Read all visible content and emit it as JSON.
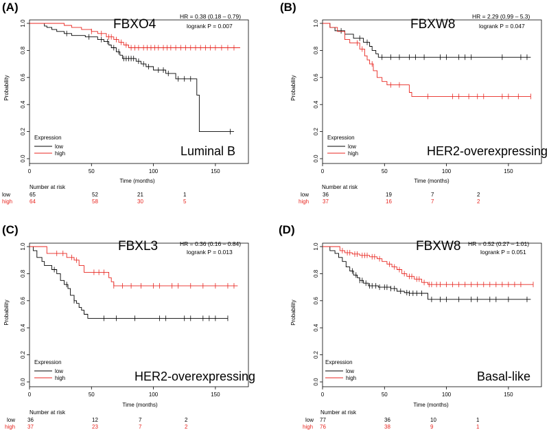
{
  "colors": {
    "low": "#000000",
    "high": "#e8251f",
    "axis": "#000000"
  },
  "chart_data": [
    {
      "type": "line",
      "panel": "(A)",
      "gene": "FBXO4",
      "subtype": "Luminal B",
      "hr_text": "HR = 0.38 (0.18 – 0.79)",
      "p_text": "logrank P = 0.007",
      "xlabel": "Time (months)",
      "ylabel": "Probability",
      "xlim": [
        0,
        170
      ],
      "ylim": [
        0,
        1
      ],
      "xticks": [
        0,
        50,
        100,
        150
      ],
      "yticks": [
        "0.0",
        "0.2",
        "0.4",
        "0.6",
        "0.8",
        "1.0"
      ],
      "legend_title": "Expression",
      "risk_title": "Number at risk",
      "series": [
        {
          "name": "low",
          "color_key": "low",
          "points": [
            [
              0,
              1
            ],
            [
              10,
              1
            ],
            [
              12,
              0.98
            ],
            [
              14,
              0.97
            ],
            [
              18,
              0.955
            ],
            [
              22,
              0.94
            ],
            [
              28,
              0.925
            ],
            [
              34,
              0.91
            ],
            [
              45,
              0.9
            ],
            [
              55,
              0.88
            ],
            [
              60,
              0.865
            ],
            [
              64,
              0.84
            ],
            [
              66,
              0.82
            ],
            [
              70,
              0.79
            ],
            [
              73,
              0.765
            ],
            [
              75,
              0.74
            ],
            [
              86,
              0.72
            ],
            [
              90,
              0.7
            ],
            [
              94,
              0.68
            ],
            [
              100,
              0.655
            ],
            [
              110,
              0.63
            ],
            [
              118,
              0.59
            ],
            [
              135,
              0.59
            ],
            [
              135,
              0.47
            ],
            [
              137,
              0.47
            ],
            [
              137,
              0.2
            ],
            [
              165,
              0.2
            ]
          ],
          "censor_x": [
            30,
            48,
            58,
            63,
            68,
            72,
            76,
            78,
            80,
            82,
            84,
            88,
            92,
            96,
            104,
            108,
            112,
            120,
            125,
            130,
            162
          ]
        },
        {
          "name": "high",
          "color_key": "high",
          "points": [
            [
              0,
              1
            ],
            [
              25,
              1
            ],
            [
              28,
              0.985
            ],
            [
              34,
              0.97
            ],
            [
              42,
              0.955
            ],
            [
              50,
              0.94
            ],
            [
              55,
              0.925
            ],
            [
              62,
              0.9
            ],
            [
              68,
              0.88
            ],
            [
              72,
              0.86
            ],
            [
              76,
              0.84
            ],
            [
              80,
              0.82
            ],
            [
              170,
              0.82
            ]
          ],
          "censor_x": [
            50,
            58,
            64,
            66,
            70,
            74,
            78,
            82,
            85,
            88,
            92,
            95,
            98,
            101,
            104,
            108,
            111,
            114,
            118,
            122,
            126,
            130,
            134,
            138,
            142,
            146,
            150,
            155,
            160,
            165
          ]
        }
      ],
      "risk_table": [
        {
          "label": "low",
          "color_key": "low",
          "values": [
            "65",
            "52",
            "21",
            "1"
          ]
        },
        {
          "label": "high",
          "color_key": "high",
          "values": [
            "64",
            "58",
            "30",
            "5"
          ]
        }
      ]
    },
    {
      "type": "line",
      "panel": "(B)",
      "gene": "FBXW8",
      "subtype": "HER2-overexpressing",
      "hr_text": "HR = 2.29 (0.99 – 5.3)",
      "p_text": "logrank P = 0.047",
      "xlabel": "Time (months)",
      "ylabel": "Probability",
      "xlim": [
        0,
        170
      ],
      "ylim": [
        0,
        1
      ],
      "xticks": [
        0,
        50,
        100,
        150
      ],
      "yticks": [
        "0.0",
        "0.2",
        "0.4",
        "0.6",
        "0.8",
        "1.0"
      ],
      "legend_title": "Expression",
      "risk_title": "Number at risk",
      "series": [
        {
          "name": "low",
          "color_key": "low",
          "points": [
            [
              0,
              1
            ],
            [
              4,
              1
            ],
            [
              6,
              0.97
            ],
            [
              10,
              0.945
            ],
            [
              18,
              0.92
            ],
            [
              25,
              0.89
            ],
            [
              33,
              0.86
            ],
            [
              38,
              0.83
            ],
            [
              40,
              0.8
            ],
            [
              43,
              0.775
            ],
            [
              45,
              0.75
            ],
            [
              168,
              0.75
            ]
          ],
          "censor_x": [
            15,
            30,
            36,
            48,
            55,
            62,
            70,
            75,
            82,
            95,
            100,
            110,
            115,
            120,
            145,
            160,
            165
          ]
        },
        {
          "name": "high",
          "color_key": "high",
          "points": [
            [
              0,
              1
            ],
            [
              3,
              1
            ],
            [
              6,
              0.97
            ],
            [
              12,
              0.94
            ],
            [
              18,
              0.88
            ],
            [
              22,
              0.855
            ],
            [
              30,
              0.81
            ],
            [
              34,
              0.76
            ],
            [
              36,
              0.73
            ],
            [
              38,
              0.7
            ],
            [
              41,
              0.65
            ],
            [
              44,
              0.6
            ],
            [
              48,
              0.57
            ],
            [
              52,
              0.545
            ],
            [
              67,
              0.545
            ],
            [
              70,
              0.49
            ],
            [
              72,
              0.46
            ],
            [
              168,
              0.46
            ]
          ],
          "censor_x": [
            28,
            32,
            40,
            55,
            62,
            85,
            105,
            110,
            118,
            125,
            130,
            145,
            150,
            158,
            168
          ]
        }
      ],
      "risk_table": [
        {
          "label": "low",
          "color_key": "low",
          "values": [
            "36",
            "19",
            "7",
            "2"
          ]
        },
        {
          "label": "high",
          "color_key": "high",
          "values": [
            "37",
            "16",
            "7",
            "2"
          ]
        }
      ]
    },
    {
      "type": "line",
      "panel": "(C)",
      "gene": "FBXL3",
      "subtype": "HER2-overexpressing",
      "hr_text": "HR = 0.36 (0.16 – 0.84)",
      "p_text": "logrank P = 0.013",
      "xlabel": "Time (months)",
      "ylabel": "Probability",
      "xlim": [
        0,
        170
      ],
      "ylim": [
        0,
        1
      ],
      "xticks": [
        0,
        50,
        100,
        150
      ],
      "yticks": [
        "0.0",
        "0.2",
        "0.4",
        "0.6",
        "0.8",
        "1.0"
      ],
      "legend_title": "Expression",
      "risk_title": "Number at risk",
      "series": [
        {
          "name": "low",
          "color_key": "low",
          "points": [
            [
              0,
              1
            ],
            [
              3,
              0.97
            ],
            [
              6,
              0.92
            ],
            [
              10,
              0.89
            ],
            [
              12,
              0.86
            ],
            [
              18,
              0.83
            ],
            [
              22,
              0.8
            ],
            [
              25,
              0.75
            ],
            [
              28,
              0.72
            ],
            [
              31,
              0.69
            ],
            [
              33,
              0.64
            ],
            [
              36,
              0.6
            ],
            [
              38,
              0.58
            ],
            [
              40,
              0.55
            ],
            [
              42,
              0.53
            ],
            [
              44,
              0.5
            ],
            [
              47,
              0.47
            ],
            [
              160,
              0.47
            ]
          ],
          "censor_x": [
            20,
            30,
            36,
            60,
            70,
            85,
            105,
            110,
            125,
            130,
            140,
            145,
            150,
            160
          ]
        },
        {
          "name": "high",
          "color_key": "high",
          "points": [
            [
              0,
              1
            ],
            [
              10,
              1
            ],
            [
              14,
              0.95
            ],
            [
              30,
              0.92
            ],
            [
              36,
              0.9
            ],
            [
              40,
              0.86
            ],
            [
              44,
              0.81
            ],
            [
              62,
              0.81
            ],
            [
              64,
              0.77
            ],
            [
              66,
              0.74
            ],
            [
              68,
              0.71
            ],
            [
              168,
              0.71
            ]
          ],
          "censor_x": [
            22,
            27,
            34,
            38,
            52,
            56,
            60,
            68,
            75,
            82,
            90,
            100,
            105,
            115,
            120,
            130,
            140,
            150,
            160,
            165
          ]
        }
      ],
      "risk_table": [
        {
          "label": "low",
          "color_key": "low",
          "values": [
            "36",
            "12",
            "7",
            "2"
          ]
        },
        {
          "label": "high",
          "color_key": "high",
          "values": [
            "37",
            "23",
            "7",
            "2"
          ]
        }
      ]
    },
    {
      "type": "line",
      "panel": "(D)",
      "gene": "FBXW8",
      "subtype": "Basal-like",
      "hr_text": "HR = 0.52 (0.27 – 1.01)",
      "p_text": "logrank P = 0.051",
      "xlabel": "Time (months)",
      "ylabel": "Probability",
      "xlim": [
        0,
        170
      ],
      "ylim": [
        0,
        1
      ],
      "xticks": [
        0,
        50,
        100,
        150
      ],
      "yticks": [
        "0.0",
        "0.2",
        "0.4",
        "0.6",
        "0.8",
        "1.0"
      ],
      "legend_title": "Expression",
      "risk_title": "Number at risk",
      "series": [
        {
          "name": "low",
          "color_key": "low",
          "points": [
            [
              0,
              1
            ],
            [
              6,
              0.97
            ],
            [
              10,
              0.95
            ],
            [
              13,
              0.92
            ],
            [
              16,
              0.89
            ],
            [
              19,
              0.85
            ],
            [
              22,
              0.82
            ],
            [
              25,
              0.79
            ],
            [
              28,
              0.77
            ],
            [
              30,
              0.75
            ],
            [
              33,
              0.73
            ],
            [
              37,
              0.71
            ],
            [
              45,
              0.7
            ],
            [
              55,
              0.69
            ],
            [
              60,
              0.67
            ],
            [
              66,
              0.66
            ],
            [
              70,
              0.655
            ],
            [
              83,
              0.655
            ],
            [
              85,
              0.61
            ],
            [
              168,
              0.61
            ]
          ],
          "censor_x": [
            24,
            27,
            30,
            32,
            35,
            38,
            40,
            43,
            46,
            50,
            52,
            55,
            58,
            63,
            68,
            70,
            73,
            76,
            80,
            88,
            95,
            100,
            110,
            120,
            125,
            135,
            140,
            150,
            165
          ]
        },
        {
          "name": "high",
          "color_key": "high",
          "points": [
            [
              0,
              1
            ],
            [
              10,
              1
            ],
            [
              14,
              0.97
            ],
            [
              18,
              0.955
            ],
            [
              24,
              0.945
            ],
            [
              30,
              0.935
            ],
            [
              38,
              0.925
            ],
            [
              44,
              0.91
            ],
            [
              48,
              0.89
            ],
            [
              52,
              0.87
            ],
            [
              56,
              0.85
            ],
            [
              60,
              0.83
            ],
            [
              64,
              0.8
            ],
            [
              68,
              0.78
            ],
            [
              74,
              0.76
            ],
            [
              80,
              0.735
            ],
            [
              85,
              0.72
            ],
            [
              170,
              0.72
            ]
          ],
          "censor_x": [
            16,
            20,
            22,
            26,
            28,
            32,
            34,
            36,
            40,
            42,
            46,
            54,
            58,
            62,
            66,
            70,
            72,
            76,
            78,
            82,
            86,
            88,
            92,
            95,
            100,
            105,
            110,
            115,
            120,
            125,
            130,
            135,
            140,
            145,
            150,
            155,
            160,
            170
          ]
        }
      ],
      "risk_table": [
        {
          "label": "low",
          "color_key": "low",
          "values": [
            "77",
            "36",
            "10",
            "1"
          ]
        },
        {
          "label": "high",
          "color_key": "high",
          "values": [
            "76",
            "38",
            "9",
            "1"
          ]
        }
      ]
    }
  ]
}
